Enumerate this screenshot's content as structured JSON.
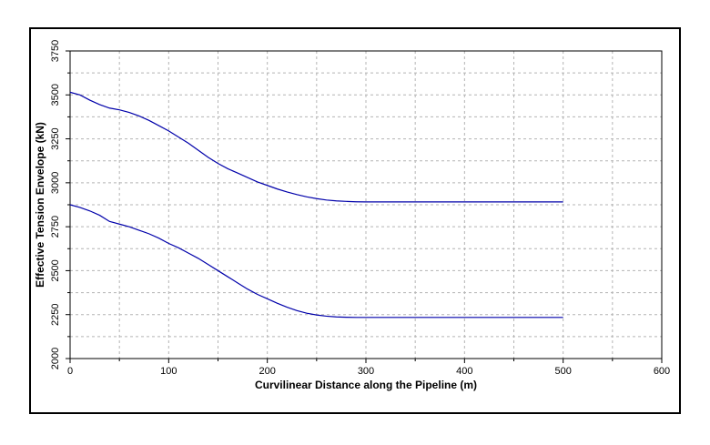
{
  "chart_data": {
    "type": "line",
    "title": "",
    "xlabel": "Curvilinear Distance along the Pipeline (m)",
    "ylabel": "Effective Tension Envelope (kN)",
    "xlim": [
      0,
      600
    ],
    "ylim": [
      2000,
      3750
    ],
    "xticks": [
      0,
      100,
      200,
      300,
      400,
      500,
      600
    ],
    "yticks": [
      2000,
      2250,
      2500,
      2750,
      3000,
      3250,
      3500,
      3750
    ],
    "x_minor_step": 50,
    "y_minor_step": 125,
    "grid": true,
    "legend": "none",
    "line_color": "#0000aa",
    "series": [
      {
        "x": [
          0,
          10,
          20,
          30,
          40,
          50,
          60,
          70,
          80,
          90,
          100,
          110,
          120,
          130,
          140,
          150,
          160,
          170,
          180,
          190,
          200,
          210,
          220,
          230,
          240,
          250,
          260,
          270,
          280,
          290,
          300,
          350,
          400,
          450,
          500
        ],
        "y": [
          3515,
          3500,
          3470,
          3445,
          3425,
          3415,
          3400,
          3380,
          3355,
          3325,
          3295,
          3260,
          3225,
          3185,
          3145,
          3110,
          3080,
          3055,
          3030,
          3005,
          2985,
          2965,
          2948,
          2933,
          2920,
          2910,
          2902,
          2897,
          2894,
          2892,
          2891,
          2891,
          2891,
          2891,
          2891
        ]
      },
      {
        "x": [
          0,
          10,
          20,
          30,
          40,
          50,
          60,
          70,
          80,
          90,
          100,
          110,
          120,
          130,
          140,
          150,
          160,
          170,
          180,
          190,
          200,
          210,
          220,
          230,
          240,
          250,
          260,
          270,
          280,
          290,
          300,
          350,
          400,
          450,
          500
        ],
        "y": [
          2875,
          2860,
          2840,
          2815,
          2780,
          2765,
          2750,
          2730,
          2710,
          2685,
          2655,
          2630,
          2600,
          2570,
          2535,
          2500,
          2465,
          2430,
          2395,
          2365,
          2340,
          2315,
          2292,
          2273,
          2258,
          2248,
          2241,
          2237,
          2235,
          2234,
          2234,
          2234,
          2234,
          2234,
          2234
        ]
      }
    ]
  }
}
